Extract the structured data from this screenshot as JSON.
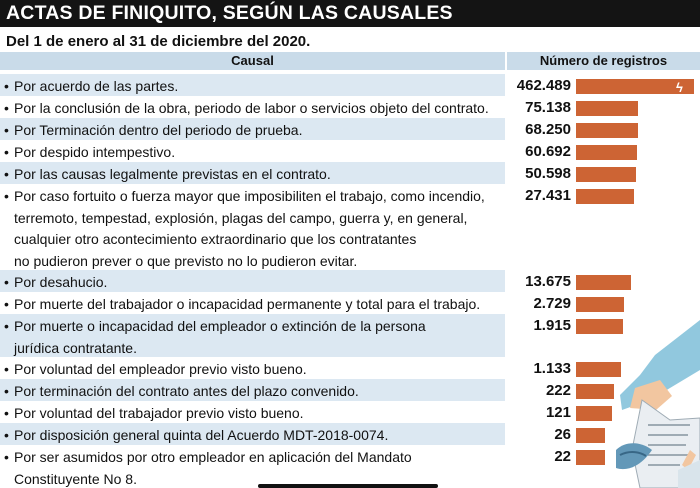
{
  "title": "ACTAS DE FINIQUITO, SEGÚN LAS CAUSALES",
  "subtitle": "Del 1 de enero al 31 de diciembre del 2020.",
  "headers": {
    "causal": "Causal",
    "registros": "Número de registros"
  },
  "rows": [
    {
      "lines": [
        "Por acuerdo de las partes."
      ],
      "value_text": "462.489"
    },
    {
      "lines": [
        "Por la conclusión de la obra, periodo de labor o servicios objeto del contrato."
      ],
      "value_text": "75.138"
    },
    {
      "lines": [
        "Por Terminación dentro del periodo de prueba."
      ],
      "value_text": "68.250"
    },
    {
      "lines": [
        "Por despido intempestivo."
      ],
      "value_text": "60.692"
    },
    {
      "lines": [
        "Por las causas legalmente previstas en el contrato."
      ],
      "value_text": "50.598"
    },
    {
      "lines": [
        "Por caso fortuito o fuerza mayor que imposibiliten el trabajo, como incendio,",
        "terremoto, tempestad, explosión, plagas del campo, guerra y, en general,",
        "cualquier otro acontecimiento extraordinario que los contratantes",
        "no pudieron prever o que previsto no lo pudieron evitar."
      ],
      "value_text": "27.431"
    },
    {
      "lines": [
        "Por desahucio."
      ],
      "value_text": "13.675"
    },
    {
      "lines": [
        "Por muerte del trabajador o incapacidad permanente y total para el trabajo."
      ],
      "value_text": "2.729"
    },
    {
      "lines": [
        "Por muerte o incapacidad del empleador o extinción de la persona",
        "jurídica contratante."
      ],
      "value_text": "1.915"
    },
    {
      "lines": [
        "Por voluntad del empleador previo visto bueno."
      ],
      "value_text": "1.133"
    },
    {
      "lines": [
        "Por terminación del contrato antes del plazo convenido."
      ],
      "value_text": "222"
    },
    {
      "lines": [
        "Por voluntad del trabajador previo visto bueno."
      ],
      "value_text": "121"
    },
    {
      "lines": [
        "Por disposición general quinta del Acuerdo MDT-2018-0074."
      ],
      "value_text": "26"
    },
    {
      "lines": [
        "Por ser asumidos por otro empleador en aplicación del Mandato",
        "Constituyente No 8."
      ],
      "value_text": "22"
    }
  ],
  "chart_data": {
    "type": "bar",
    "orientation": "horizontal",
    "axis_break_on_first_bar": true,
    "bar_color": "#cd6434",
    "categories": [
      "Por acuerdo de las partes.",
      "Por la conclusión de la obra, periodo de labor o servicios objeto del contrato.",
      "Por Terminación dentro del periodo de prueba.",
      "Por despido intempestivo.",
      "Por las causas legalmente previstas en el contrato.",
      "Por caso fortuito o fuerza mayor que imposibiliten el trabajo, como incendio, terremoto, tempestad, explosión, plagas del campo, guerra y, en general, cualquier otro acontecimiento extraordinario que los contratantes no pudieron prever o que previsto no lo pudieron evitar.",
      "Por desahucio.",
      "Por muerte del trabajador o incapacidad permanente y total para el trabajo.",
      "Por muerte o incapacidad del empleador o extinción de la persona jurídica contratante.",
      "Por voluntad del empleador previo visto bueno.",
      "Por terminación del contrato antes del plazo convenido.",
      "Por voluntad del trabajador previo visto bueno.",
      "Por disposición general quinta del Acuerdo MDT-2018-0074.",
      "Por ser asumidos por otro empleador en aplicación del Mandato Constituyente No 8."
    ],
    "values": [
      462489,
      75138,
      68250,
      60692,
      50598,
      27431,
      13675,
      2729,
      1915,
      1133,
      222,
      121,
      26,
      22
    ]
  },
  "decoration": {
    "icon": "hand-holding-document-illustration"
  }
}
